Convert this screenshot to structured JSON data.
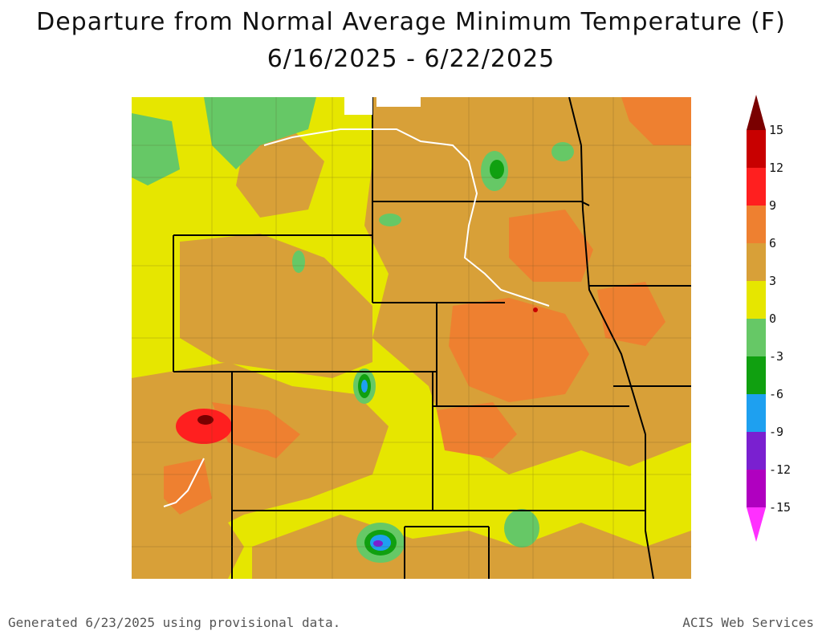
{
  "title": {
    "line1": "Departure from Normal Average Minimum Temperature (F)",
    "line2": "6/16/2025 - 6/22/2025"
  },
  "legend": {
    "labels": [
      "15",
      "12",
      "9",
      "6",
      "3",
      "0",
      "-3",
      "-6",
      "-9",
      "-12",
      "-15"
    ],
    "colors": [
      "#7a0000",
      "#c80000",
      "#ff1f1f",
      "#ee8030",
      "#d8a038",
      "#e6e600",
      "#66c866",
      "#10a010",
      "#1ea0f0",
      "#7a20d0",
      "#b000c0",
      "#ff30ff"
    ]
  },
  "map": {
    "background_color": "#e6e600",
    "warm_color": "#d8a038",
    "warmer_color": "#ee8030",
    "hot_color": "#ff1f1f",
    "hottest_color": "#7a0000",
    "cool_color": "#66c866",
    "cooler_color": "#10a010",
    "cold_color": "#1ea0f0",
    "colder_color": "#7a20d0"
  },
  "footer": {
    "generated": "Generated 6/23/2025 using provisional data.",
    "credit": "ACIS Web Services"
  }
}
